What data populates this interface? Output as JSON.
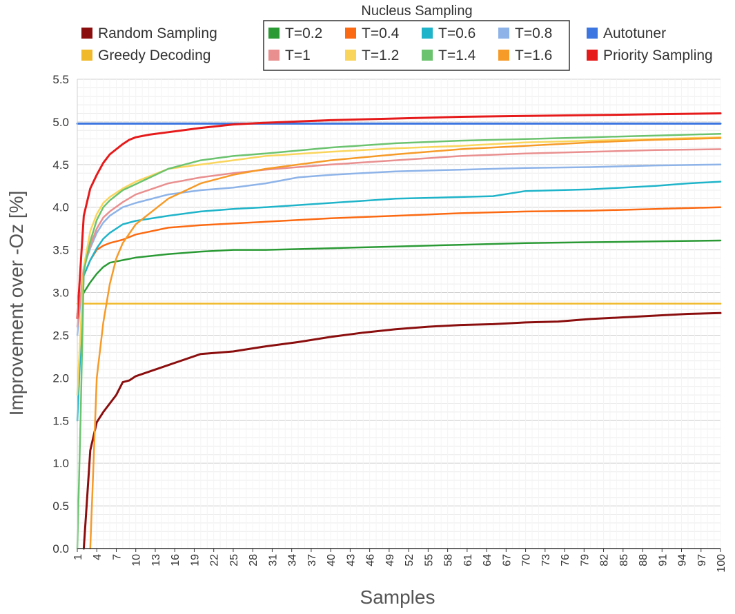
{
  "chart_data": {
    "type": "line",
    "xlabel": "Samples",
    "ylabel": "Improvement over -Oz [%]",
    "xlim": [
      1,
      100
    ],
    "ylim": [
      0,
      5.5
    ],
    "yticks": [
      "0.0",
      "0.5",
      "1.0",
      "1.5",
      "2.0",
      "2.5",
      "3.0",
      "3.5",
      "4.0",
      "4.5",
      "5.0",
      "5.5"
    ],
    "xticks": [
      "1",
      "4",
      "7",
      "10",
      "13",
      "16",
      "19",
      "22",
      "25",
      "28",
      "31",
      "34",
      "37",
      "40",
      "43",
      "46",
      "49",
      "52",
      "55",
      "58",
      "61",
      "64",
      "67",
      "70",
      "73",
      "76",
      "79",
      "82",
      "85",
      "88",
      "91",
      "94",
      "97",
      "100"
    ],
    "grid": true,
    "legend_group_title": "Nucleus Sampling",
    "legend": [
      {
        "name": "Random Sampling",
        "color": "#8b0e0e"
      },
      {
        "name": "Greedy Decoding",
        "color": "#f0b92b"
      },
      {
        "name": "T=0.2",
        "color": "#2a9a35"
      },
      {
        "name": "T=0.4",
        "color": "#fb6a12"
      },
      {
        "name": "T=0.6",
        "color": "#1fb4c9"
      },
      {
        "name": "T=0.8",
        "color": "#8db3e8"
      },
      {
        "name": "T=1",
        "color": "#e98f8f"
      },
      {
        "name": "T=1.2",
        "color": "#fad55c"
      },
      {
        "name": "T=1.4",
        "color": "#6cc36f"
      },
      {
        "name": "T=1.6",
        "color": "#f69a28"
      },
      {
        "name": "Autotuner",
        "color": "#3c76e0"
      },
      {
        "name": "Priority Sampling",
        "color": "#e61a1a"
      }
    ],
    "series": [
      {
        "name": "Random Sampling",
        "color": "#8b0e0e",
        "x": [
          2,
          3,
          4,
          5,
          7,
          8,
          9,
          10,
          15,
          20,
          25,
          30,
          35,
          40,
          45,
          50,
          55,
          60,
          65,
          70,
          75,
          80,
          85,
          90,
          95,
          100
        ],
        "values": [
          0,
          1.15,
          1.48,
          1.6,
          1.8,
          1.95,
          1.97,
          2.02,
          2.15,
          2.28,
          2.31,
          2.37,
          2.42,
          2.48,
          2.53,
          2.57,
          2.6,
          2.62,
          2.63,
          2.65,
          2.66,
          2.69,
          2.71,
          2.73,
          2.75,
          2.76
        ]
      },
      {
        "name": "Greedy Decoding",
        "color": "#f0b92b",
        "x": [
          1,
          100
        ],
        "values": [
          2.87,
          2.87
        ]
      },
      {
        "name": "T=0.2",
        "color": "#2a9a35",
        "x": [
          1,
          2,
          3,
          4,
          5,
          6,
          8,
          10,
          15,
          20,
          25,
          30,
          40,
          50,
          60,
          70,
          80,
          90,
          100
        ],
        "values": [
          2.75,
          3.0,
          3.12,
          3.22,
          3.3,
          3.35,
          3.38,
          3.41,
          3.45,
          3.48,
          3.5,
          3.5,
          3.52,
          3.54,
          3.56,
          3.58,
          3.59,
          3.6,
          3.61
        ]
      },
      {
        "name": "T=0.4",
        "color": "#fb6a12",
        "x": [
          1,
          2,
          3,
          4,
          5,
          6,
          8,
          10,
          15,
          20,
          25,
          30,
          40,
          50,
          60,
          70,
          80,
          90,
          100
        ],
        "values": [
          2.7,
          3.2,
          3.38,
          3.5,
          3.55,
          3.58,
          3.62,
          3.68,
          3.76,
          3.79,
          3.81,
          3.83,
          3.87,
          3.9,
          3.93,
          3.95,
          3.96,
          3.98,
          4.0
        ]
      },
      {
        "name": "T=0.6",
        "color": "#1fb4c9",
        "x": [
          1,
          2,
          3,
          4,
          5,
          6,
          8,
          10,
          15,
          20,
          25,
          30,
          40,
          50,
          60,
          65,
          70,
          80,
          90,
          95,
          100
        ],
        "values": [
          1.5,
          3.2,
          3.38,
          3.52,
          3.63,
          3.7,
          3.8,
          3.84,
          3.9,
          3.95,
          3.98,
          4.0,
          4.05,
          4.1,
          4.12,
          4.13,
          4.19,
          4.21,
          4.25,
          4.28,
          4.3
        ]
      },
      {
        "name": "T=0.8",
        "color": "#8db3e8",
        "x": [
          1,
          2,
          3,
          4,
          5,
          6,
          8,
          10,
          15,
          20,
          25,
          30,
          35,
          40,
          50,
          60,
          70,
          80,
          90,
          100
        ],
        "values": [
          2.5,
          3.3,
          3.52,
          3.7,
          3.82,
          3.9,
          4.0,
          4.05,
          4.15,
          4.2,
          4.23,
          4.28,
          4.35,
          4.38,
          4.42,
          4.44,
          4.46,
          4.47,
          4.49,
          4.5
        ]
      },
      {
        "name": "T=1",
        "color": "#e98f8f",
        "x": [
          1,
          2,
          3,
          4,
          5,
          6,
          8,
          10,
          15,
          20,
          25,
          30,
          40,
          50,
          60,
          70,
          80,
          90,
          100
        ],
        "values": [
          2.6,
          3.3,
          3.55,
          3.75,
          3.88,
          3.95,
          4.06,
          4.15,
          4.28,
          4.35,
          4.4,
          4.44,
          4.5,
          4.55,
          4.6,
          4.63,
          4.65,
          4.67,
          4.68
        ]
      },
      {
        "name": "T=1.2",
        "color": "#fad55c",
        "x": [
          1,
          2,
          3,
          4,
          5,
          6,
          8,
          10,
          15,
          20,
          25,
          30,
          40,
          50,
          60,
          70,
          80,
          90,
          100
        ],
        "values": [
          1.8,
          3.3,
          3.72,
          3.92,
          4.05,
          4.12,
          4.22,
          4.3,
          4.45,
          4.5,
          4.55,
          4.6,
          4.65,
          4.69,
          4.72,
          4.76,
          4.78,
          4.8,
          4.82
        ]
      },
      {
        "name": "T=1.4",
        "color": "#6cc36f",
        "x": [
          1,
          1.5,
          2,
          3,
          4,
          5,
          6,
          8,
          10,
          15,
          20,
          25,
          30,
          40,
          50,
          60,
          70,
          80,
          90,
          100
        ],
        "values": [
          0,
          1.5,
          3.25,
          3.6,
          3.85,
          4.0,
          4.08,
          4.2,
          4.27,
          4.45,
          4.55,
          4.6,
          4.63,
          4.7,
          4.75,
          4.78,
          4.8,
          4.82,
          4.84,
          4.86
        ]
      },
      {
        "name": "T=1.6",
        "color": "#f69a28",
        "x": [
          3,
          4,
          5,
          6,
          7,
          8,
          10,
          15,
          20,
          25,
          30,
          40,
          50,
          60,
          70,
          80,
          90,
          100
        ],
        "values": [
          0,
          2.0,
          2.65,
          3.1,
          3.4,
          3.58,
          3.8,
          4.1,
          4.28,
          4.38,
          4.45,
          4.55,
          4.62,
          4.68,
          4.72,
          4.76,
          4.79,
          4.81
        ]
      },
      {
        "name": "Autotuner",
        "color": "#3c76e0",
        "x": [
          1,
          100
        ],
        "values": [
          4.98,
          4.98
        ]
      },
      {
        "name": "Priority Sampling",
        "color": "#e61a1a",
        "x": [
          1,
          2,
          3,
          4,
          5,
          6,
          7,
          8,
          9,
          10,
          12,
          15,
          20,
          25,
          30,
          40,
          50,
          60,
          70,
          80,
          90,
          100
        ],
        "values": [
          2.7,
          3.9,
          4.22,
          4.38,
          4.52,
          4.62,
          4.68,
          4.74,
          4.79,
          4.82,
          4.85,
          4.88,
          4.93,
          4.97,
          4.99,
          5.02,
          5.04,
          5.06,
          5.07,
          5.08,
          5.09,
          5.1
        ]
      }
    ]
  }
}
